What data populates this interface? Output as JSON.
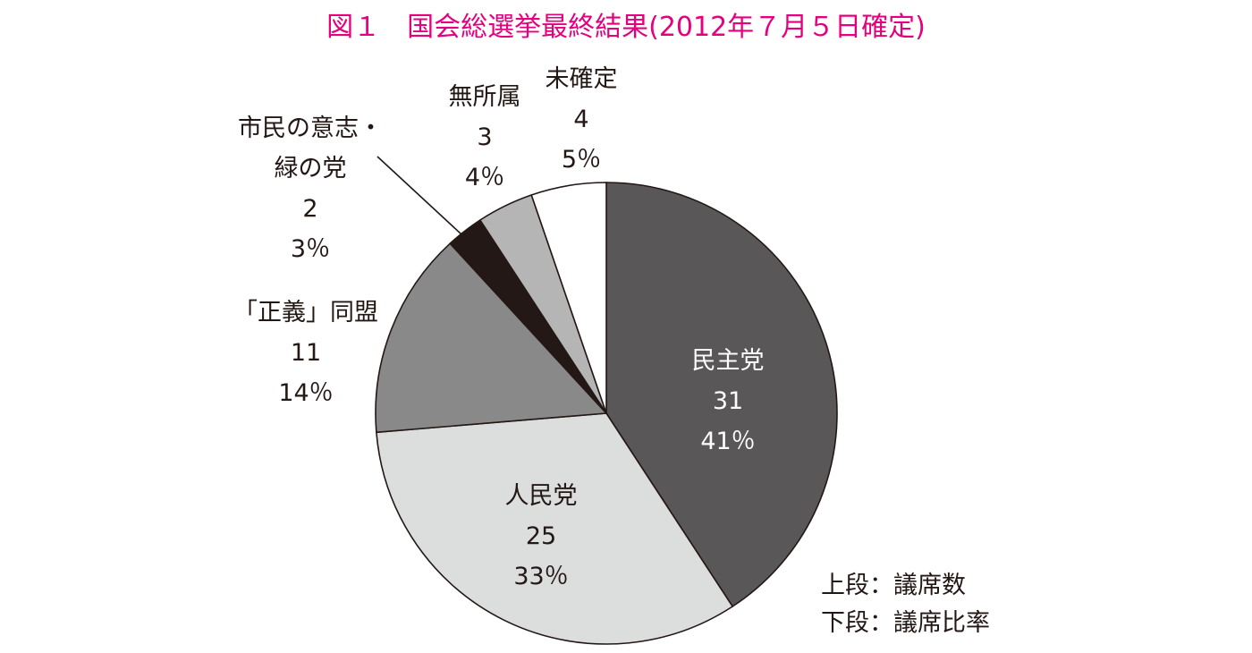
{
  "chart_data": {
    "type": "pie",
    "title": "図１　国会総選挙最終結果(2012年７月５日確定)",
    "slices": [
      {
        "name": "民主党",
        "value": 31,
        "percent": "41％",
        "color": "#595757"
      },
      {
        "name": "人民党",
        "value": 25,
        "percent": "33％",
        "color": "#dcdddd"
      },
      {
        "name": "「正義」同盟",
        "value": 11,
        "percent": "14％",
        "color": "#898989"
      },
      {
        "name": "市民の意志・緑の党",
        "name_lines": [
          "市民の意志・",
          "緑の党"
        ],
        "value": 2,
        "percent": "3％",
        "color": "#231815"
      },
      {
        "name": "無所属",
        "value": 3,
        "percent": "4％",
        "color": "#b5b5b6"
      },
      {
        "name": "未確定",
        "value": 4,
        "percent": "5％",
        "color": "#ffffff"
      }
    ],
    "legend": {
      "upper": "上段：議席数",
      "lower": "下段：議席比率"
    }
  },
  "colors": {
    "title": "#e4007f",
    "text": "#231815",
    "inner_text_on_dark": "#ffffff",
    "outline": "#231815"
  }
}
